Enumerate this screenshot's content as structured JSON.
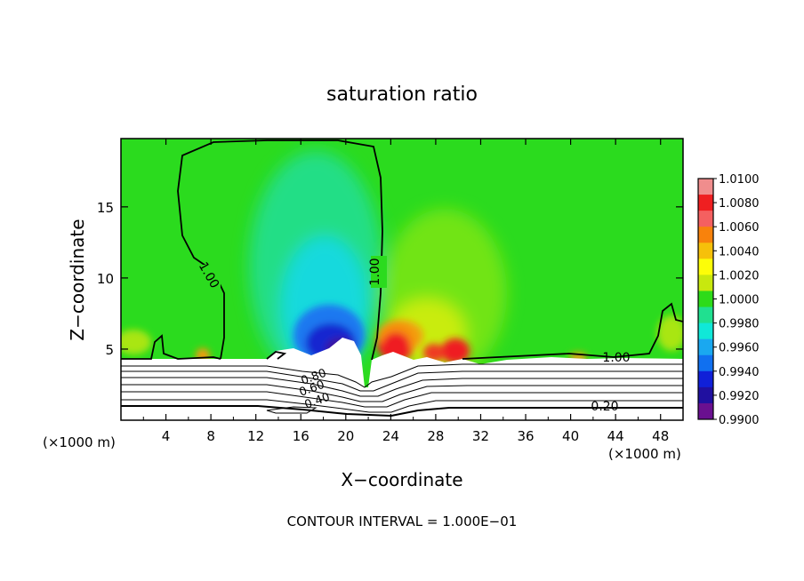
{
  "chart_data": {
    "type": "heatmap",
    "title": "saturation ratio",
    "xlabel": "X−coordinate",
    "ylabel": "Z−coordinate",
    "x_unit_left": "(×1000 m)",
    "x_unit_right": "(×1000 m)",
    "xlim": [
      0,
      50
    ],
    "ylim": [
      0,
      19.8
    ],
    "x_ticks": [
      4,
      8,
      12,
      16,
      20,
      24,
      28,
      32,
      36,
      40,
      44,
      48
    ],
    "y_ticks": [
      5,
      10,
      15
    ],
    "footer": "CONTOUR INTERVAL = 1.000E−01",
    "colorbar": {
      "labels": [
        "1.0100",
        "1.0080",
        "1.0060",
        "1.0040",
        "1.0020",
        "1.0000",
        "0.9980",
        "0.9960",
        "0.9940",
        "0.9920",
        "0.9900"
      ],
      "colors": [
        "#f08d8d",
        "#ef1f21",
        "#f46060",
        "#f8820c",
        "#f6c00a",
        "#fdfd08",
        "#c8e80e",
        "#2ddb19",
        "#20e090",
        "#10e8d8",
        "#1aa8f0",
        "#1070f0",
        "#1020d8",
        "#2010a0",
        "#6a1090"
      ]
    },
    "contour_labels": [
      {
        "text": "1.00",
        "x": 14.4,
        "y": 10.0
      },
      {
        "text": "1.00",
        "x": 22.7,
        "y": 10.5
      },
      {
        "text": "1.00",
        "x": 42.5,
        "y": 4.5
      },
      {
        "text": "0.20",
        "x": 42.5,
        "y": 1.0
      },
      {
        "text": "0.80",
        "x": 17.6,
        "y": 2.9
      },
      {
        "text": "0.60",
        "x": 17.6,
        "y": 2.3
      },
      {
        "text": "0.40",
        "x": 17.6,
        "y": 1.6
      }
    ],
    "colors": {
      "background_field": "#2bdb1e",
      "boundary": "#ffffff",
      "line": "#000000"
    }
  }
}
